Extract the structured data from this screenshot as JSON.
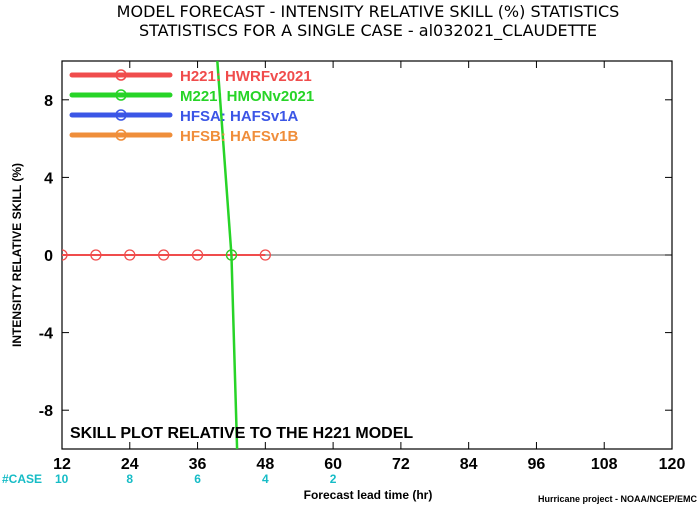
{
  "chart_data": {
    "type": "line",
    "title": "MODEL FORECAST - INTENSITY RELATIVE SKILL (%) STATISTICS",
    "subtitle": "STATISTISCS FOR A SINGLE CASE - al032021_CLAUDETTE",
    "xlabel": "Forecast lead time (hr)",
    "ylabel": "INTENSITY RELATIVE SKILL (%)",
    "xlim": [
      12,
      120
    ],
    "ylim": [
      -10,
      10
    ],
    "xticks": [
      12,
      24,
      36,
      48,
      60,
      72,
      84,
      96,
      108,
      120
    ],
    "yticks": [
      -8,
      -4,
      0,
      4,
      8
    ],
    "ytick_labels": [
      "-8",
      "-4",
      "0",
      "4",
      "8"
    ],
    "grid": false,
    "legend_position": "top-left",
    "annotation": "SKILL PLOT RELATIVE TO THE H221 MODEL",
    "case_label": "#CASE",
    "case_counts": [
      {
        "x": 12,
        "n": "10"
      },
      {
        "x": 24,
        "n": "8"
      },
      {
        "x": 36,
        "n": "6"
      },
      {
        "x": 48,
        "n": "4"
      },
      {
        "x": 60,
        "n": "2"
      }
    ],
    "credit": "Hurricane project - NOAA/NCEP/EMC",
    "series": [
      {
        "name": "H221: HWRFv2021",
        "color": "#f04c4c",
        "x": [
          12,
          18,
          24,
          30,
          36,
          42,
          48
        ],
        "y": [
          0,
          0,
          0,
          0,
          0,
          0,
          0
        ],
        "markers": true
      },
      {
        "name": "M221: HMONv2021",
        "color": "#27d427",
        "x": [
          39.5,
          42,
          43
        ],
        "y": [
          10,
          0,
          -10
        ],
        "markers": true,
        "marker_x": [
          42
        ],
        "marker_y": [
          0
        ]
      },
      {
        "name": "HFSA: HAFSv1A",
        "color": "#3b56e6",
        "x": [],
        "y": []
      },
      {
        "name": "HFSB: HAFSv1B",
        "color": "#ef8e3a",
        "x": [],
        "y": []
      }
    ]
  }
}
